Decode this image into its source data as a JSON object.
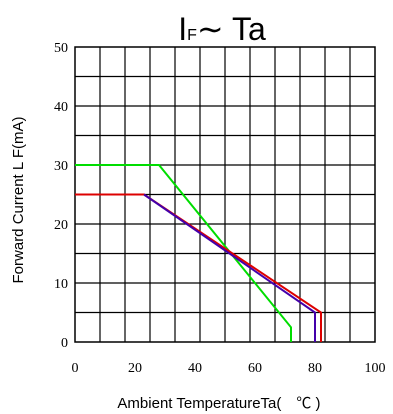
{
  "chart_data": {
    "type": "line",
    "title": {
      "main": "I",
      "subscript": "F",
      "suffix": "∼ Ta"
    },
    "xlabel": "Ambient TemperatureTa(　℃ )",
    "ylabel": "Forward Current L F(mA)",
    "xlim": [
      0,
      100
    ],
    "ylim": [
      0,
      50
    ],
    "xticks": [
      "0",
      "20",
      "40",
      "60",
      "80",
      "100"
    ],
    "yticks": [
      "0",
      "10",
      "20",
      "30",
      "40",
      "50"
    ],
    "grid": true,
    "legend": "none",
    "series": [
      {
        "color": "#00dd00",
        "points": [
          [
            0,
            30
          ],
          [
            28,
            30
          ],
          [
            72,
            2.5
          ],
          [
            72,
            0
          ]
        ]
      },
      {
        "color": "#dd0000",
        "points": [
          [
            0,
            25
          ],
          [
            23,
            25
          ],
          [
            82,
            5
          ],
          [
            82,
            0
          ]
        ]
      },
      {
        "color": "#4400aa",
        "points": [
          [
            23,
            25
          ],
          [
            80,
            5
          ],
          [
            80,
            0
          ]
        ]
      }
    ]
  }
}
